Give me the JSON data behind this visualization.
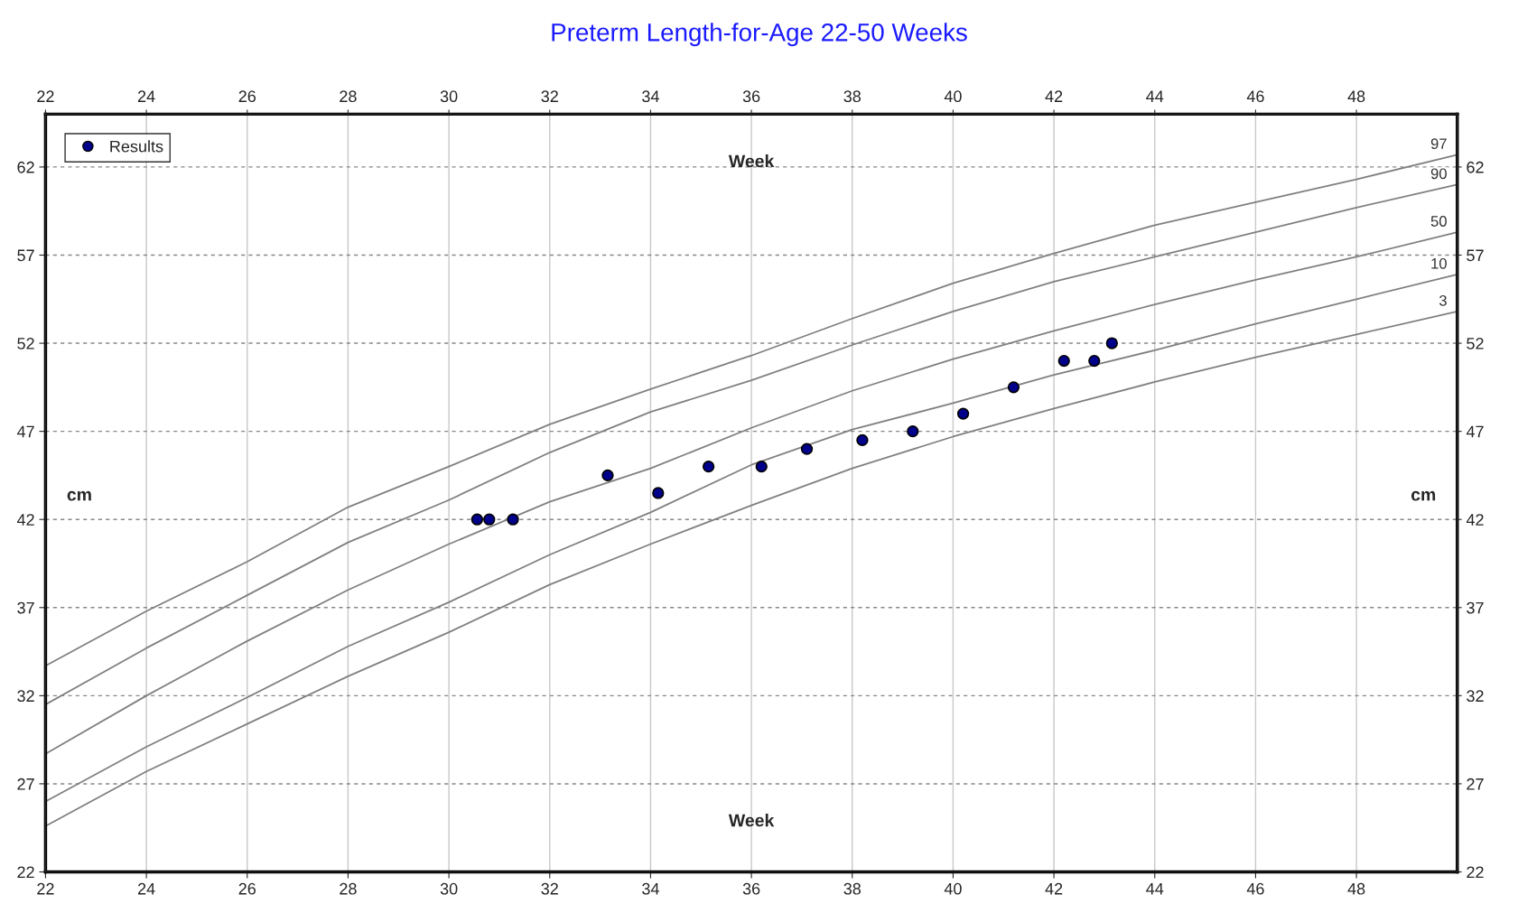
{
  "chart_data": {
    "type": "line",
    "title": "Preterm Length-for-Age 22-50 Weeks",
    "xlabel": "Week",
    "x2label": "Week",
    "ylabel": "cm",
    "y2label": "cm",
    "xlim": [
      22,
      50
    ],
    "xticks": [
      22,
      24,
      26,
      28,
      30,
      32,
      34,
      36,
      38,
      40,
      42,
      44,
      46,
      48
    ],
    "x2lim": [
      22,
      50
    ],
    "x2ticks": [
      22,
      24,
      26,
      28,
      30,
      32,
      34,
      36,
      38,
      40,
      42,
      44,
      46,
      48
    ],
    "ylim": [
      22,
      65
    ],
    "yticks": [
      22,
      27,
      32,
      37,
      42,
      47,
      52,
      57,
      62
    ],
    "y2lim": [
      22,
      65
    ],
    "y2ticks": [
      22,
      27,
      32,
      37,
      42,
      47,
      52,
      57,
      62
    ],
    "grid": true,
    "legend": "top left",
    "x": [
      22,
      24,
      26,
      28,
      30,
      32,
      34,
      36,
      38,
      40,
      42,
      44,
      46,
      48,
      50
    ],
    "series": [
      {
        "name": "97",
        "color": "#808080",
        "marker": "none",
        "values": [
          33.7,
          36.8,
          39.6,
          42.7,
          45.0,
          47.4,
          49.4,
          51.3,
          53.4,
          55.4,
          57.1,
          58.7,
          60.0,
          61.3,
          62.7
        ]
      },
      {
        "name": "90",
        "color": "#808080",
        "marker": "none",
        "values": [
          31.5,
          34.7,
          37.7,
          40.7,
          43.1,
          45.8,
          48.1,
          49.9,
          51.9,
          53.8,
          55.5,
          56.9,
          58.3,
          59.7,
          61.0
        ]
      },
      {
        "name": "50",
        "color": "#808080",
        "marker": "none",
        "values": [
          28.7,
          32.0,
          35.1,
          38.0,
          40.6,
          43.0,
          44.9,
          47.2,
          49.3,
          51.1,
          52.7,
          54.2,
          55.6,
          56.9,
          58.3
        ]
      },
      {
        "name": "10",
        "color": "#808080",
        "marker": "none",
        "values": [
          26.0,
          29.1,
          31.9,
          34.8,
          37.3,
          40.0,
          42.4,
          45.1,
          47.1,
          48.6,
          50.2,
          51.6,
          53.1,
          54.5,
          55.9
        ]
      },
      {
        "name": "3",
        "color": "#808080",
        "marker": "none",
        "values": [
          24.6,
          27.7,
          30.4,
          33.1,
          35.6,
          38.3,
          40.6,
          42.8,
          44.9,
          46.7,
          48.3,
          49.8,
          51.2,
          52.5,
          53.8
        ]
      },
      {
        "name": "Results",
        "type": "scatter",
        "color": "#00008b",
        "marker": "circle",
        "x": [
          30.56,
          30.8,
          31.27,
          33.15,
          34.15,
          35.15,
          36.2,
          37.1,
          38.2,
          39.2,
          40.2,
          41.2,
          42.2,
          42.8,
          43.15
        ],
        "values": [
          42.0,
          42.0,
          42.0,
          44.5,
          43.5,
          45.0,
          45.0,
          46.0,
          46.5,
          47.0,
          48.0,
          49.5,
          51.0,
          51.0,
          52.0
        ]
      }
    ]
  }
}
